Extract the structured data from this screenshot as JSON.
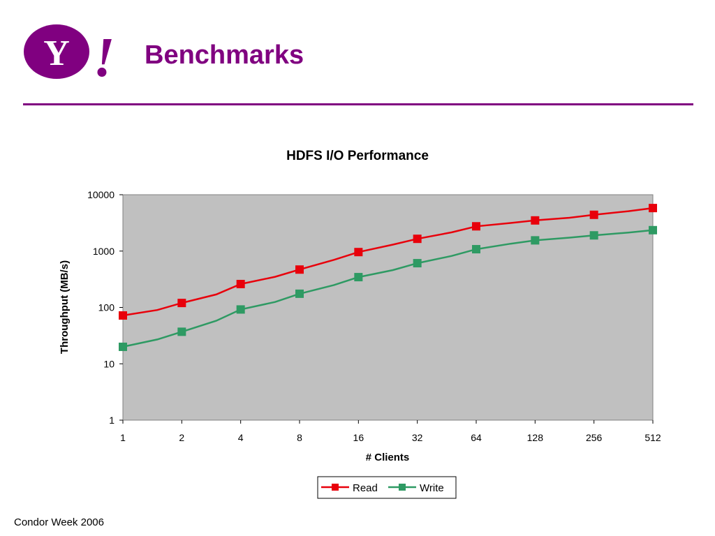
{
  "header": {
    "title": "Benchmarks",
    "logo_text": "Y!"
  },
  "footer": {
    "text": "Condor Week 2006"
  },
  "colors": {
    "brand_purple": "#800080",
    "plot_background": "#c0c0c0",
    "read": "#e8000b",
    "write": "#2e9a63"
  },
  "chart_data": {
    "type": "line",
    "title": "HDFS I/O Performance",
    "xlabel": "# Clients",
    "ylabel": "Throughput (MB/s)",
    "x_scale": "log2",
    "y_scale": "log10",
    "x_ticks": [
      "1",
      "2",
      "4",
      "8",
      "16",
      "32",
      "64",
      "128",
      "256",
      "512"
    ],
    "y_ticks": [
      "1",
      "10",
      "100",
      "1000",
      "10000"
    ],
    "ylim": [
      1,
      10000
    ],
    "grid": false,
    "legend_position": "bottom",
    "series": [
      {
        "name": "Read",
        "color": "#e8000b",
        "x": [
          1,
          1.5,
          2,
          3,
          4,
          6,
          8,
          12,
          16,
          24,
          32,
          48,
          64,
          96,
          128,
          192,
          256,
          384,
          512
        ],
        "y": [
          72,
          90,
          120,
          170,
          260,
          350,
          470,
          700,
          960,
          1300,
          1650,
          2150,
          2750,
          3150,
          3500,
          3900,
          4400,
          5100,
          5800
        ],
        "markers": [
          1,
          2,
          4,
          8,
          16,
          32,
          64,
          128,
          256,
          512
        ]
      },
      {
        "name": "Write",
        "color": "#2e9a63",
        "x": [
          1,
          1.5,
          2,
          3,
          4,
          6,
          8,
          12,
          16,
          24,
          32,
          48,
          64,
          96,
          128,
          192,
          256,
          384,
          512
        ],
        "y": [
          20,
          27,
          37,
          58,
          92,
          125,
          175,
          250,
          345,
          460,
          610,
          820,
          1080,
          1350,
          1550,
          1730,
          1900,
          2130,
          2350
        ],
        "markers": [
          1,
          2,
          4,
          8,
          16,
          32,
          64,
          128,
          256,
          512
        ]
      }
    ]
  }
}
